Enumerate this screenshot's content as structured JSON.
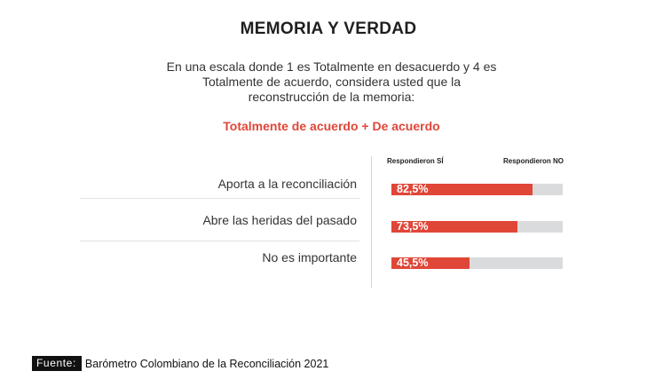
{
  "title": "MEMORIA Y VERDAD",
  "question_lines": [
    "En una escala donde 1 es Totalmente en desacuerdo y 4 es",
    "Totalmente de acuerdo, considera usted que la",
    "reconstrucción de la memoria:"
  ],
  "highlight": "Totalmente de acuerdo + De acuerdo",
  "colors": {
    "accent": "#e04638",
    "track": "#dadbdd"
  },
  "chart_data": {
    "type": "bar",
    "orientation": "horizontal",
    "legend": [
      "Respondieron SÍ",
      "Respondieron NO"
    ],
    "categories": [
      "Aporta a la reconciliación",
      "Abre las heridas del pasado",
      "No es importante"
    ],
    "series": [
      {
        "name": "Respondieron SÍ",
        "values": [
          82.5,
          73.5,
          45.5
        ]
      }
    ],
    "value_labels": [
      "82,5%",
      "73,5%",
      "45,5%"
    ],
    "xlim": [
      0,
      100
    ]
  },
  "source": {
    "label": "Fuente:",
    "text": "Barómetro Colombiano de la Reconciliación 2021"
  }
}
